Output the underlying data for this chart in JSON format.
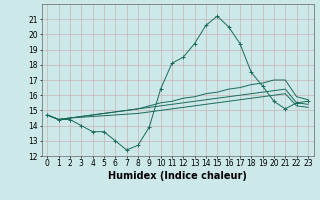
{
  "x": [
    0,
    1,
    2,
    3,
    4,
    5,
    6,
    7,
    8,
    9,
    10,
    11,
    12,
    13,
    14,
    15,
    16,
    17,
    18,
    19,
    20,
    21,
    22,
    23
  ],
  "line1": [
    14.7,
    14.4,
    14.4,
    14.0,
    13.6,
    13.6,
    13.0,
    12.4,
    12.7,
    13.9,
    16.4,
    18.1,
    18.5,
    19.4,
    20.6,
    21.2,
    20.5,
    19.4,
    17.5,
    16.6,
    15.6,
    15.1,
    15.5,
    15.6
  ],
  "line2": [
    14.7,
    14.4,
    14.5,
    14.6,
    14.7,
    14.8,
    14.9,
    15.0,
    15.1,
    15.3,
    15.5,
    15.6,
    15.8,
    15.9,
    16.1,
    16.2,
    16.4,
    16.5,
    16.7,
    16.8,
    17.0,
    17.0,
    15.9,
    15.7
  ],
  "line3": [
    14.7,
    14.4,
    14.5,
    14.6,
    14.7,
    14.8,
    14.9,
    15.0,
    15.1,
    15.2,
    15.3,
    15.4,
    15.5,
    15.6,
    15.7,
    15.8,
    15.9,
    16.0,
    16.1,
    16.2,
    16.3,
    16.4,
    15.5,
    15.4
  ],
  "line4": [
    14.7,
    14.4,
    14.5,
    14.55,
    14.6,
    14.65,
    14.7,
    14.75,
    14.8,
    14.9,
    15.0,
    15.1,
    15.2,
    15.3,
    15.4,
    15.5,
    15.6,
    15.7,
    15.8,
    15.9,
    16.0,
    16.1,
    15.3,
    15.2
  ],
  "color": "#1a6b5a",
  "bg_color": "#cce8e8",
  "grid_color": "#b8c8c8",
  "ylim": [
    12,
    22
  ],
  "xlim": [
    -0.5,
    23.5
  ],
  "yticks": [
    12,
    13,
    14,
    15,
    16,
    17,
    18,
    19,
    20,
    21
  ],
  "xticks": [
    0,
    1,
    2,
    3,
    4,
    5,
    6,
    7,
    8,
    9,
    10,
    11,
    12,
    13,
    14,
    15,
    16,
    17,
    18,
    19,
    20,
    21,
    22,
    23
  ],
  "xlabel": "Humidex (Indice chaleur)",
  "xlabel_fontsize": 7,
  "tick_fontsize": 5.5,
  "marker_size": 1.8,
  "line_width": 0.7
}
